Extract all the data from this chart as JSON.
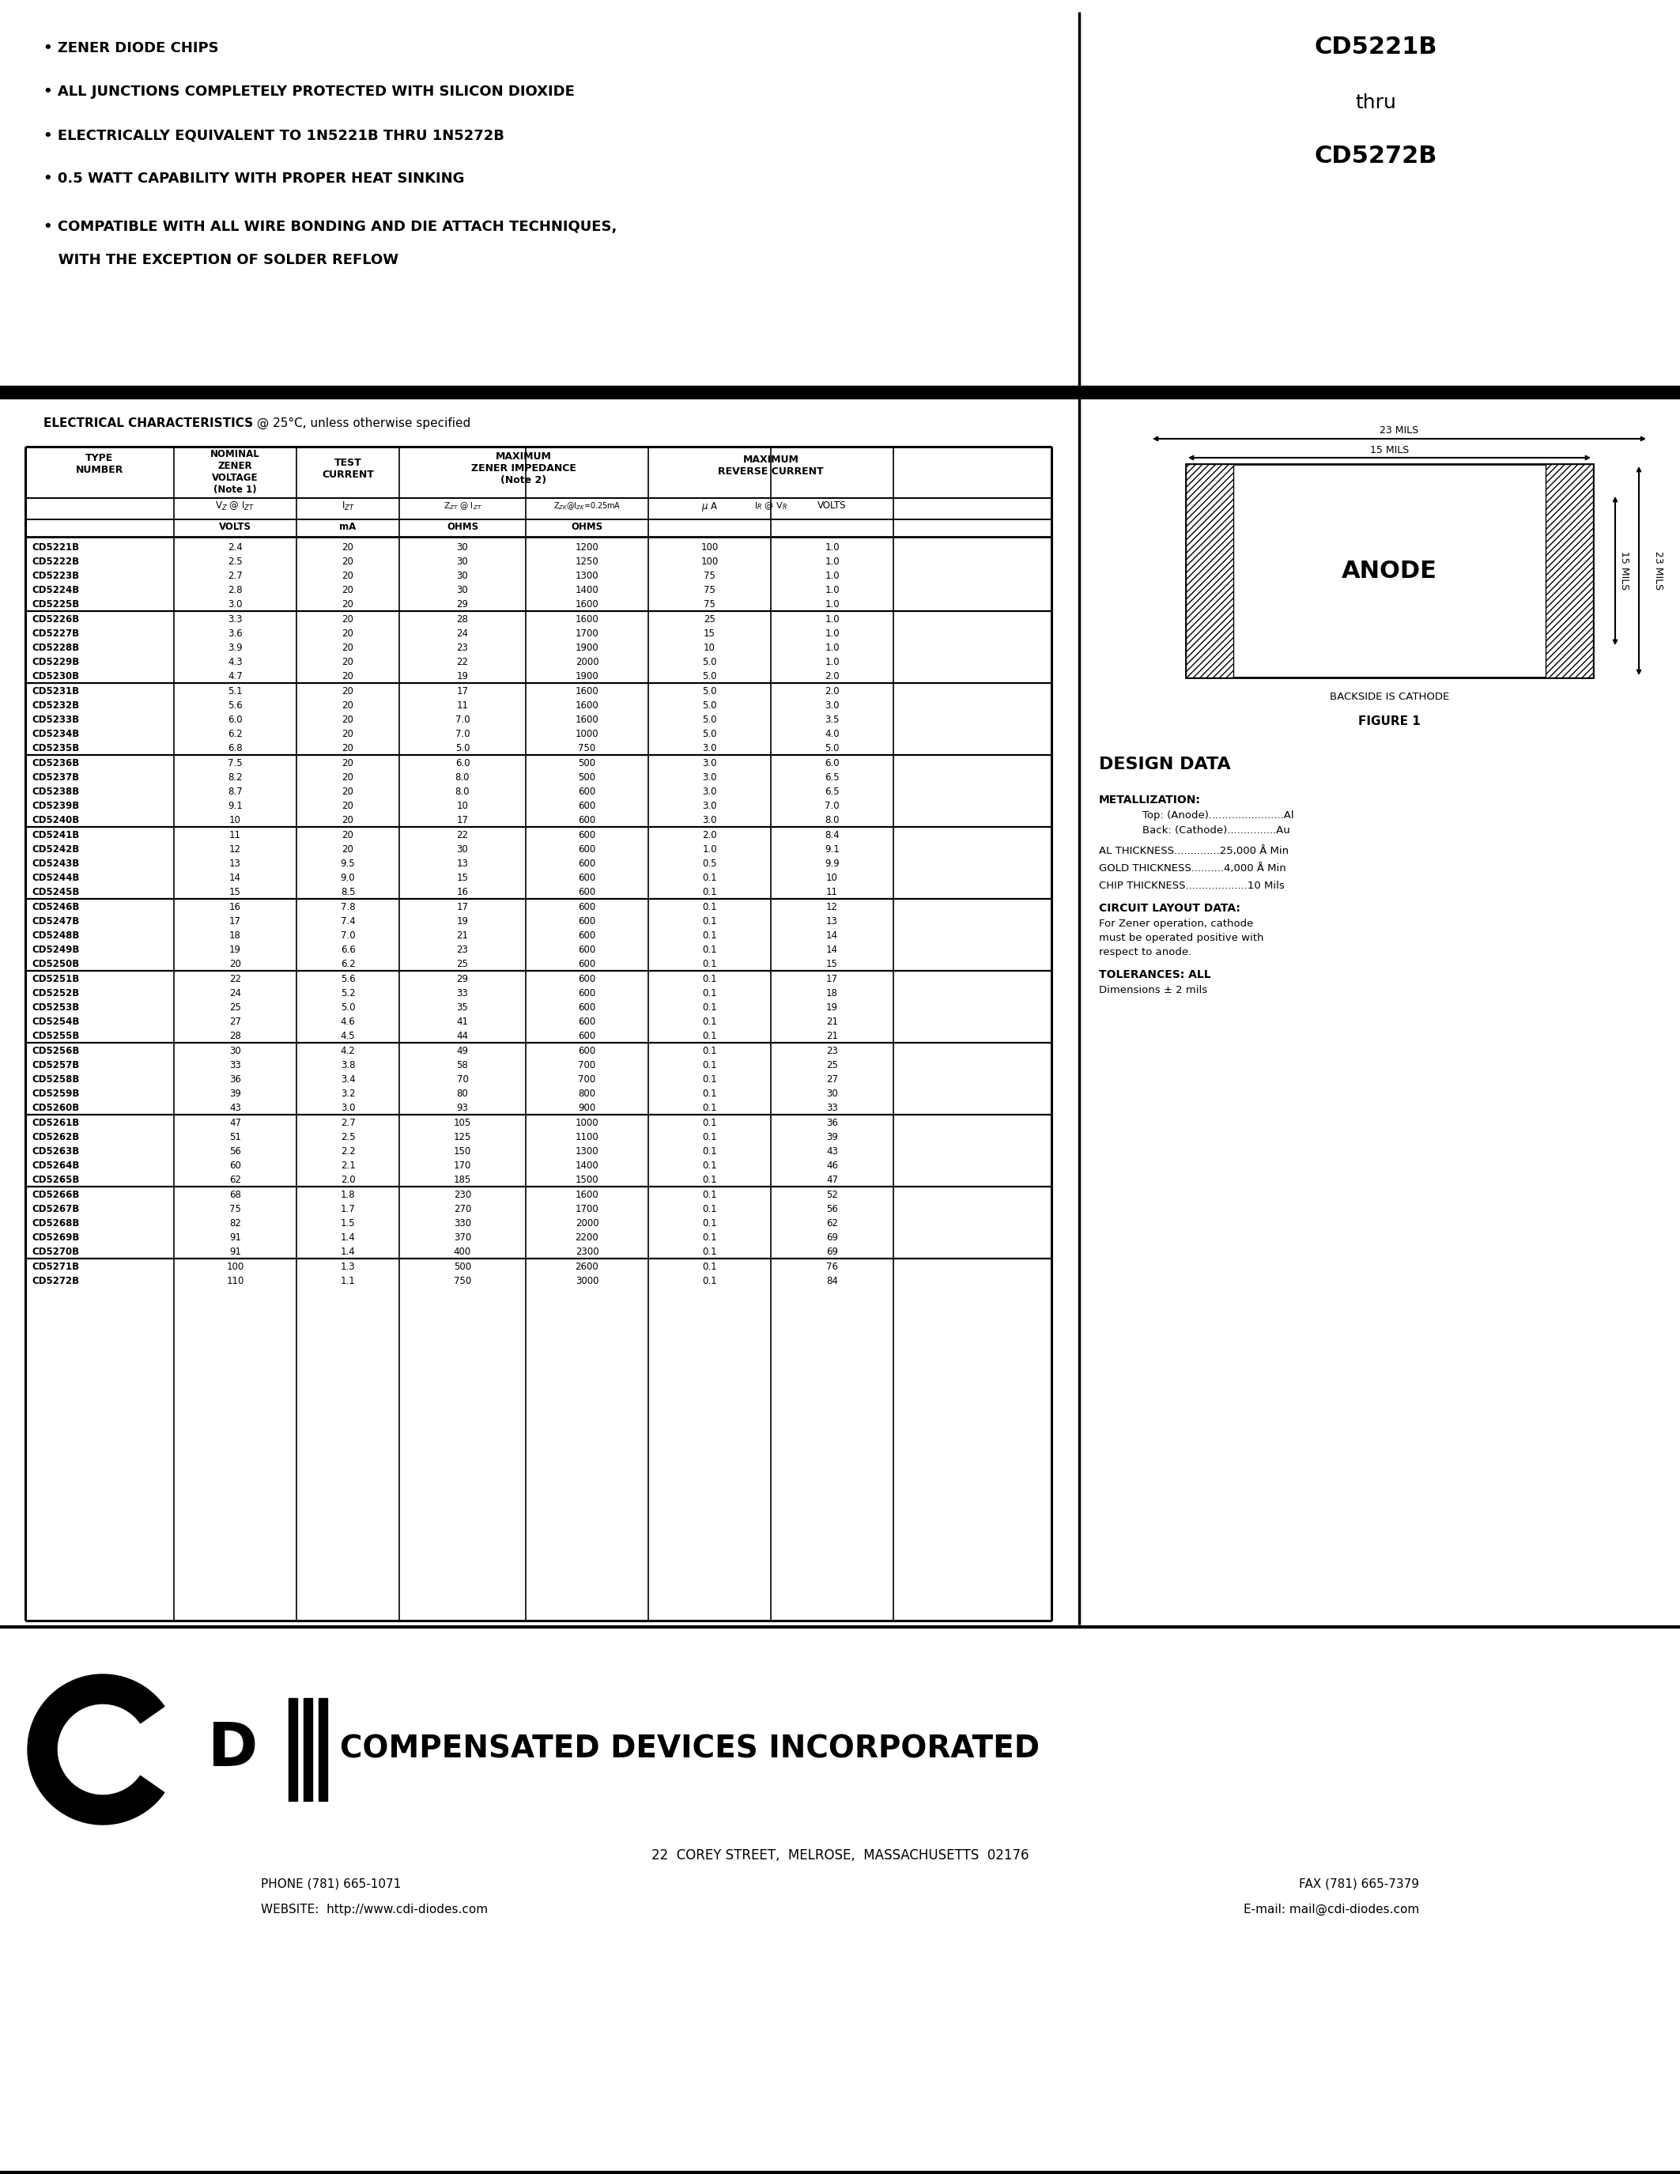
{
  "title_left_lines": [
    "• ZENER DIODE CHIPS",
    "• ALL JUNCTIONS COMPLETELY PROTECTED WITH SILICON DIOXIDE",
    "• ELECTRICALLY EQUIVALENT TO 1N5221B THRU 1N5272B",
    "• 0.5 WATT CAPABILITY WITH PROPER HEAT SINKING",
    "• COMPATIBLE WITH ALL WIRE BONDING AND DIE ATTACH TECHNIQUES,",
    "   WITH THE EXCEPTION OF SOLDER REFLOW"
  ],
  "title_right_lines": [
    "CD5221B",
    "thru",
    "CD5272B"
  ],
  "ec_title_bold": "ELECTRICAL CHARACTERISTICS",
  "ec_title_rest": " @ 25°C, unless otherwise specified",
  "table_data": [
    [
      "CD5221B",
      "2.4",
      "20",
      "30",
      "1200",
      "100",
      "1.0"
    ],
    [
      "CD5222B",
      "2.5",
      "20",
      "30",
      "1250",
      "100",
      "1.0"
    ],
    [
      "CD5223B",
      "2.7",
      "20",
      "30",
      "1300",
      "75",
      "1.0"
    ],
    [
      "CD5224B",
      "2.8",
      "20",
      "30",
      "1400",
      "75",
      "1.0"
    ],
    [
      "CD5225B",
      "3.0",
      "20",
      "29",
      "1600",
      "75",
      "1.0"
    ],
    [
      "CD5226B",
      "3.3",
      "20",
      "28",
      "1600",
      "25",
      "1.0"
    ],
    [
      "CD5227B",
      "3.6",
      "20",
      "24",
      "1700",
      "15",
      "1.0"
    ],
    [
      "CD5228B",
      "3.9",
      "20",
      "23",
      "1900",
      "10",
      "1.0"
    ],
    [
      "CD5229B",
      "4.3",
      "20",
      "22",
      "2000",
      "5.0",
      "1.0"
    ],
    [
      "CD5230B",
      "4.7",
      "20",
      "19",
      "1900",
      "5.0",
      "2.0"
    ],
    [
      "CD5231B",
      "5.1",
      "20",
      "17",
      "1600",
      "5.0",
      "2.0"
    ],
    [
      "CD5232B",
      "5.6",
      "20",
      "11",
      "1600",
      "5.0",
      "3.0"
    ],
    [
      "CD5233B",
      "6.0",
      "20",
      "7.0",
      "1600",
      "5.0",
      "3.5"
    ],
    [
      "CD5234B",
      "6.2",
      "20",
      "7.0",
      "1000",
      "5.0",
      "4.0"
    ],
    [
      "CD5235B",
      "6.8",
      "20",
      "5.0",
      "750",
      "3.0",
      "5.0"
    ],
    [
      "CD5236B",
      "7.5",
      "20",
      "6.0",
      "500",
      "3.0",
      "6.0"
    ],
    [
      "CD5237B",
      "8.2",
      "20",
      "8.0",
      "500",
      "3.0",
      "6.5"
    ],
    [
      "CD5238B",
      "8.7",
      "20",
      "8.0",
      "600",
      "3.0",
      "6.5"
    ],
    [
      "CD5239B",
      "9.1",
      "20",
      "10",
      "600",
      "3.0",
      "7.0"
    ],
    [
      "CD5240B",
      "10",
      "20",
      "17",
      "600",
      "3.0",
      "8.0"
    ],
    [
      "CD5241B",
      "11",
      "20",
      "22",
      "600",
      "2.0",
      "8.4"
    ],
    [
      "CD5242B",
      "12",
      "20",
      "30",
      "600",
      "1.0",
      "9.1"
    ],
    [
      "CD5243B",
      "13",
      "9.5",
      "13",
      "600",
      "0.5",
      "9.9"
    ],
    [
      "CD5244B",
      "14",
      "9.0",
      "15",
      "600",
      "0.1",
      "10"
    ],
    [
      "CD5245B",
      "15",
      "8.5",
      "16",
      "600",
      "0.1",
      "11"
    ],
    [
      "CD5246B",
      "16",
      "7.8",
      "17",
      "600",
      "0.1",
      "12"
    ],
    [
      "CD5247B",
      "17",
      "7.4",
      "19",
      "600",
      "0.1",
      "13"
    ],
    [
      "CD5248B",
      "18",
      "7.0",
      "21",
      "600",
      "0.1",
      "14"
    ],
    [
      "CD5249B",
      "19",
      "6.6",
      "23",
      "600",
      "0.1",
      "14"
    ],
    [
      "CD5250B",
      "20",
      "6.2",
      "25",
      "600",
      "0.1",
      "15"
    ],
    [
      "CD5251B",
      "22",
      "5.6",
      "29",
      "600",
      "0.1",
      "17"
    ],
    [
      "CD5252B",
      "24",
      "5.2",
      "33",
      "600",
      "0.1",
      "18"
    ],
    [
      "CD5253B",
      "25",
      "5.0",
      "35",
      "600",
      "0.1",
      "19"
    ],
    [
      "CD5254B",
      "27",
      "4.6",
      "41",
      "600",
      "0.1",
      "21"
    ],
    [
      "CD5255B",
      "28",
      "4.5",
      "44",
      "600",
      "0.1",
      "21"
    ],
    [
      "CD5256B",
      "30",
      "4.2",
      "49",
      "600",
      "0.1",
      "23"
    ],
    [
      "CD5257B",
      "33",
      "3.8",
      "58",
      "700",
      "0.1",
      "25"
    ],
    [
      "CD5258B",
      "36",
      "3.4",
      "70",
      "700",
      "0.1",
      "27"
    ],
    [
      "CD5259B",
      "39",
      "3.2",
      "80",
      "800",
      "0.1",
      "30"
    ],
    [
      "CD5260B",
      "43",
      "3.0",
      "93",
      "900",
      "0.1",
      "33"
    ],
    [
      "CD5261B",
      "47",
      "2.7",
      "105",
      "1000",
      "0.1",
      "36"
    ],
    [
      "CD5262B",
      "51",
      "2.5",
      "125",
      "1100",
      "0.1",
      "39"
    ],
    [
      "CD5263B",
      "56",
      "2.2",
      "150",
      "1300",
      "0.1",
      "43"
    ],
    [
      "CD5264B",
      "60",
      "2.1",
      "170",
      "1400",
      "0.1",
      "46"
    ],
    [
      "CD5265B",
      "62",
      "2.0",
      "185",
      "1500",
      "0.1",
      "47"
    ],
    [
      "CD5266B",
      "68",
      "1.8",
      "230",
      "1600",
      "0.1",
      "52"
    ],
    [
      "CD5267B",
      "75",
      "1.7",
      "270",
      "1700",
      "0.1",
      "56"
    ],
    [
      "CD5268B",
      "82",
      "1.5",
      "330",
      "2000",
      "0.1",
      "62"
    ],
    [
      "CD5269B",
      "91",
      "1.4",
      "370",
      "2200",
      "0.1",
      "69"
    ],
    [
      "CD5270B",
      "91",
      "1.4",
      "400",
      "2300",
      "0.1",
      "69"
    ],
    [
      "CD5271B",
      "100",
      "1.3",
      "500",
      "2600",
      "0.1",
      "76"
    ],
    [
      "CD5272B",
      "110",
      "1.1",
      "750",
      "3000",
      "0.1",
      "84"
    ]
  ],
  "group_row_starts": [
    0,
    5,
    10,
    15,
    20,
    25,
    30,
    35,
    40,
    45,
    50
  ],
  "right_panel_title": "DESIGN DATA",
  "metallization_title": "METALLIZATION:",
  "metallization_top": "Top: (Anode).......................Al",
  "metallization_back": "Back: (Cathode)...............Au",
  "al_thickness": "AL THICKNESS..............25,000 Å Min",
  "gold_thickness": "GOLD THICKNESS..........4,000 Å Min",
  "chip_thickness": "CHIP THICKNESS...................10 Mils",
  "circuit_layout_title": "CIRCUIT LAYOUT DATA:",
  "circuit_layout_lines": [
    "For Zener operation, cathode",
    "must be operated positive with",
    "respect to anode."
  ],
  "tolerances_title": "TOLERANCES: ALL",
  "tolerances_text": "Dimensions ± 2 mils",
  "figure_label": "FIGURE 1",
  "backside_label": "BACKSIDE IS CATHODE",
  "anode_label": "ANODE",
  "dim_23mils": "23 MILS",
  "dim_15mils": "15 MILS",
  "company_name": "COMPENSATED DEVICES INCORPORATED",
  "address_line1": "22  COREY STREET,  MELROSE,  MASSACHUSETTS  02176",
  "address_line2_left": "PHONE (781) 665-1071",
  "address_line2_right": "FAX (781) 665-7379",
  "address_line3_left": "WEBSITE:  http://www.cdi-diodes.com",
  "address_line3_right": "E-mail: mail@cdi-diodes.com"
}
